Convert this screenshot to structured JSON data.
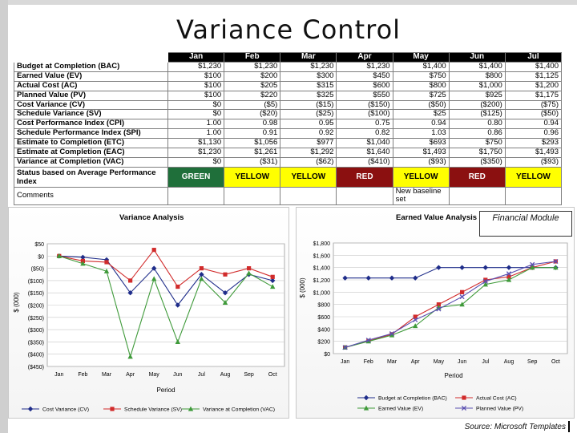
{
  "slide": {
    "title": "Variance Control",
    "badge": "Financial Module",
    "source": "Source: Microsoft Templates"
  },
  "table": {
    "months": [
      "Jan",
      "Feb",
      "Mar",
      "Apr",
      "May",
      "Jun",
      "Jul"
    ],
    "rows": [
      {
        "label": "Budget at Completion (BAC)",
        "values": [
          "$1,230",
          "$1,230",
          "$1,230",
          "$1,230",
          "$1,400",
          "$1,400",
          "$1,400"
        ]
      },
      {
        "label": "Earned Value (EV)",
        "values": [
          "$100",
          "$200",
          "$300",
          "$450",
          "$750",
          "$800",
          "$1,125"
        ]
      },
      {
        "label": "Actual Cost (AC)",
        "values": [
          "$100",
          "$205",
          "$315",
          "$600",
          "$800",
          "$1,000",
          "$1,200"
        ]
      },
      {
        "label": "Planned Value (PV)",
        "values": [
          "$100",
          "$220",
          "$325",
          "$550",
          "$725",
          "$925",
          "$1,175"
        ]
      },
      {
        "label": "Cost Variance (CV)",
        "values": [
          "$0",
          "($5)",
          "($15)",
          "($150)",
          "($50)",
          "($200)",
          "($75)"
        ]
      },
      {
        "label": "Schedule Variance (SV)",
        "values": [
          "$0",
          "($20)",
          "($25)",
          "($100)",
          "$25",
          "($125)",
          "($50)"
        ]
      },
      {
        "label": "Cost Performance Index (CPI)",
        "values": [
          "1.00",
          "0.98",
          "0.95",
          "0.75",
          "0.94",
          "0.80",
          "0.94"
        ]
      },
      {
        "label": "Schedule Performance Index (SPI)",
        "values": [
          "1.00",
          "0.91",
          "0.92",
          "0.82",
          "1.03",
          "0.86",
          "0.96"
        ]
      },
      {
        "label": "Estimate to Completion (ETC)",
        "values": [
          "$1,130",
          "$1,056",
          "$977",
          "$1,040",
          "$693",
          "$750",
          "$293"
        ]
      },
      {
        "label": "Estimate at Completion (EAC)",
        "values": [
          "$1,230",
          "$1,261",
          "$1,292",
          "$1,640",
          "$1,493",
          "$1,750",
          "$1,493"
        ]
      },
      {
        "label": "Variance at Completion (VAC)",
        "values": [
          "$0",
          "($31)",
          "($62)",
          "($410)",
          "($93)",
          "($350)",
          "($93)"
        ]
      }
    ],
    "status": {
      "label": "Status based on Average Performance Index",
      "values": [
        "GREEN",
        "YELLOW",
        "YELLOW",
        "RED",
        "YELLOW",
        "RED",
        "YELLOW"
      ],
      "colors": {
        "GREEN": "#1f6f3a",
        "YELLOW": "#ffff00",
        "RED": "#8b1010"
      }
    },
    "comments": {
      "label": "Comments",
      "values": [
        "",
        "",
        "",
        "",
        "New baseline set",
        "",
        ""
      ]
    }
  },
  "chart_data": [
    {
      "type": "line",
      "title": "Variance Analysis",
      "xlabel": "Period",
      "ylabel": "$ (000)",
      "categories": [
        "Jan",
        "Feb",
        "Mar",
        "Apr",
        "May",
        "Jun",
        "Jul",
        "Aug",
        "Sep",
        "Oct"
      ],
      "ylim": [
        -450,
        50
      ],
      "yticks": [
        50,
        0,
        -50,
        -100,
        -150,
        -200,
        -250,
        -300,
        -350,
        -400,
        -450
      ],
      "ytick_labels": [
        "$50",
        "$0",
        "($50)",
        "($100)",
        "($150)",
        "($200)",
        "($250)",
        "($300)",
        "($350)",
        "($400)",
        "($450)"
      ],
      "grid": true,
      "legend": "bottom",
      "series": [
        {
          "name": "Cost Variance (CV)",
          "color": "#1f2d8a",
          "marker": "diamond",
          "values": [
            0,
            -5,
            -15,
            -150,
            -50,
            -200,
            -75,
            -150,
            -75,
            -100
          ]
        },
        {
          "name": "Schedule Variance (SV)",
          "color": "#d12b2b",
          "marker": "square",
          "values": [
            0,
            -20,
            -25,
            -100,
            25,
            -125,
            -50,
            -75,
            -50,
            -85
          ]
        },
        {
          "name": "Variance at Completion (VAC)",
          "color": "#3f9a3a",
          "marker": "triangle",
          "values": [
            0,
            -31,
            -62,
            -410,
            -93,
            -350,
            -93,
            -190,
            -70,
            -125
          ]
        }
      ]
    },
    {
      "type": "line",
      "title": "Earned Value Analysis",
      "xlabel": "Period",
      "ylabel": "$ (000)",
      "categories": [
        "Jan",
        "Feb",
        "Mar",
        "Apr",
        "May",
        "Jun",
        "Jul",
        "Aug",
        "Sep",
        "Oct"
      ],
      "ylim": [
        0,
        1800
      ],
      "yticks": [
        0,
        200,
        400,
        600,
        800,
        1000,
        1200,
        1400,
        1600,
        1800
      ],
      "ytick_labels": [
        "$0",
        "$200",
        "$400",
        "$600",
        "$800",
        "$1,000",
        "$1,200",
        "$1,400",
        "$1,600",
        "$1,800"
      ],
      "grid": true,
      "legend": "bottom",
      "series": [
        {
          "name": "Budget at Completion (BAC)",
          "color": "#1f2d8a",
          "marker": "diamond",
          "values": [
            1230,
            1230,
            1230,
            1230,
            1400,
            1400,
            1400,
            1400,
            1400,
            1400
          ]
        },
        {
          "name": "Actual Cost (AC)",
          "color": "#d12b2b",
          "marker": "square",
          "values": [
            100,
            205,
            315,
            600,
            800,
            1000,
            1200,
            1250,
            1400,
            1500
          ]
        },
        {
          "name": "Earned Value (EV)",
          "color": "#3f9a3a",
          "marker": "triangle",
          "values": [
            100,
            200,
            300,
            450,
            750,
            800,
            1125,
            1200,
            1400,
            1400
          ]
        },
        {
          "name": "Planned Value (PV)",
          "color": "#5a4fb0",
          "marker": "x",
          "values": [
            100,
            220,
            325,
            550,
            725,
            925,
            1175,
            1300,
            1450,
            1500
          ]
        }
      ]
    }
  ]
}
